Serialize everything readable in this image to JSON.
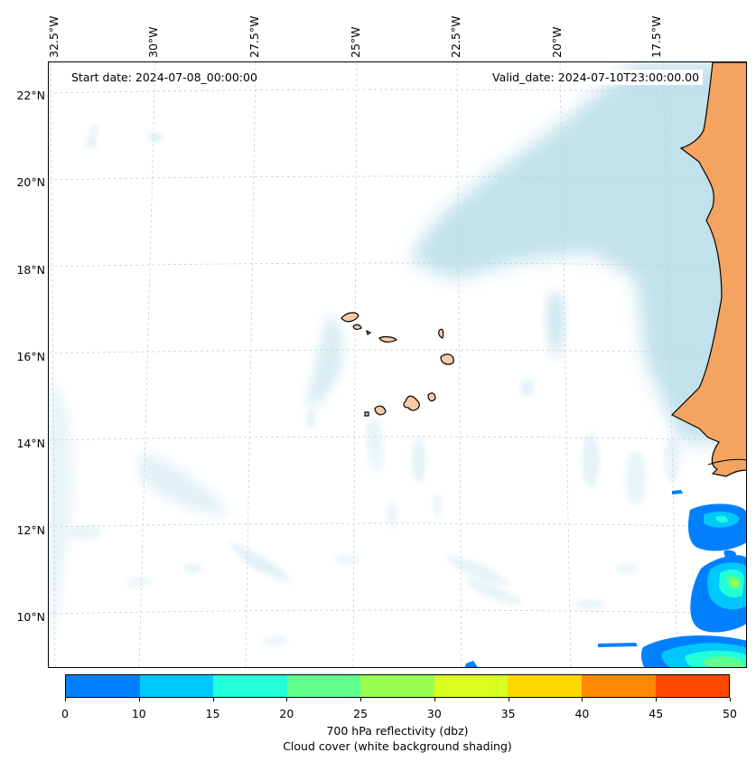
{
  "map": {
    "start_date": "Start date: 2024-07-08_00:00:00",
    "valid_date": "Valid_date: 2024-07-10T23:00:00.00",
    "lon_labels": [
      "32.5°W",
      "30°W",
      "27.5°W",
      "25°W",
      "22.5°W",
      "20°W",
      "17.5°W"
    ],
    "lat_labels": [
      "22°N",
      "20°N",
      "18°N",
      "16°N",
      "14°N",
      "12°N",
      "10°N"
    ],
    "colors": {
      "land": "#f4a460",
      "island": "#f5cba7",
      "cloud": "#add8e6",
      "coast": "#000000"
    }
  },
  "colorbar": {
    "ticks": [
      "0",
      "10",
      "15",
      "20",
      "25",
      "30",
      "35",
      "40",
      "45",
      "50"
    ],
    "colors": [
      "#0080ff",
      "#00c8ff",
      "#20ffd8",
      "#60ff90",
      "#98ff50",
      "#d8ff20",
      "#ffd800",
      "#ff8800",
      "#ff4800"
    ],
    "label": "700 hPa reflectivity (dbz)",
    "sublabel": "Cloud cover (white background shading)"
  }
}
